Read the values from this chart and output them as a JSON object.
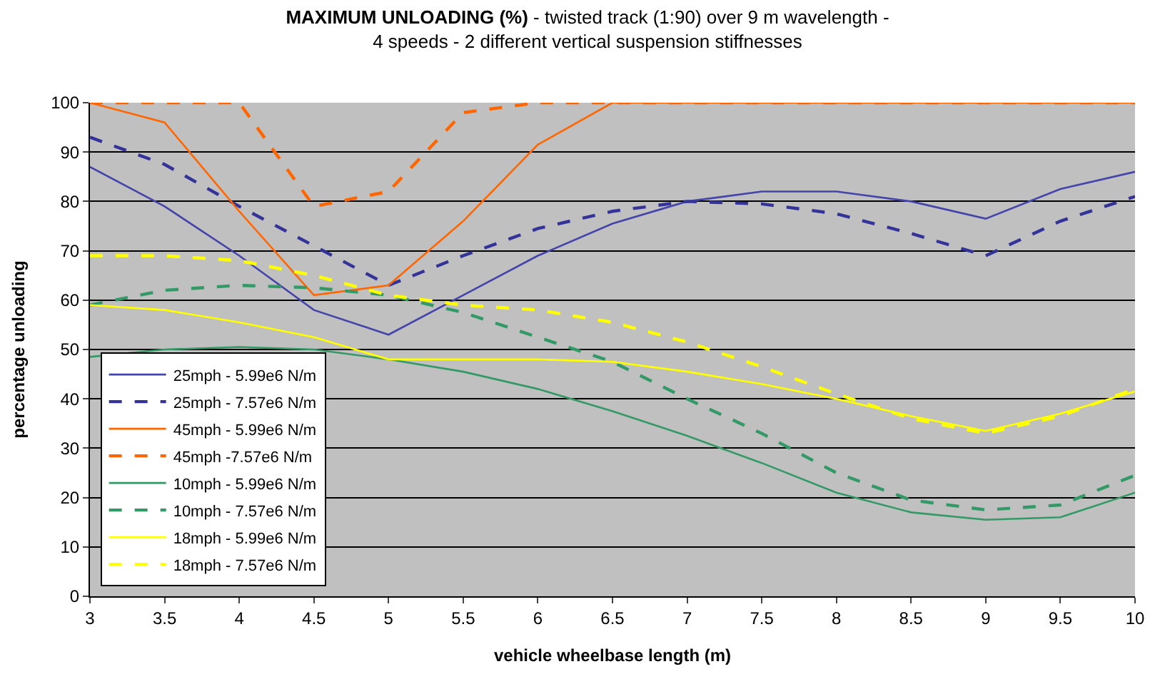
{
  "chart_data": {
    "type": "line",
    "title": "MAXIMUM UNLOADING (%)",
    "subtitle": "- twisted track (1:90) over 9 m wavelength - 4 speeds - 2 different vertical suspension stiffnesses",
    "xlabel": "vehicle wheelbase length (m)",
    "ylabel": "percentage unloading",
    "x": [
      3,
      3.5,
      4,
      4.5,
      5,
      5.5,
      6,
      6.5,
      7,
      7.5,
      8,
      8.5,
      9,
      9.5,
      10
    ],
    "series": [
      {
        "name": "25mph - 5.99e6 N/m",
        "color": "#4444aa",
        "line_style": "solid",
        "values": [
          87,
          79,
          69,
          58,
          53,
          61,
          69,
          75.5,
          80,
          82,
          82,
          80,
          76.5,
          82.5,
          86
        ]
      },
      {
        "name": "25mph - 7.57e6 N/m",
        "color": "#333399",
        "line_style": "dashed",
        "values": [
          93,
          87.5,
          79,
          71,
          63,
          69,
          74.5,
          78,
          80,
          79.5,
          77.5,
          73.5,
          69,
          76,
          81
        ]
      },
      {
        "name": "45mph - 5.99e6 N/m",
        "color": "#ff6600",
        "line_style": "solid",
        "values": [
          100,
          96,
          78,
          61,
          63,
          76,
          91.5,
          100,
          100,
          100,
          100,
          100,
          100,
          100,
          100
        ]
      },
      {
        "name": "45mph -7.57e6 N/m",
        "color": "#ff6600",
        "line_style": "dashed",
        "values": [
          100,
          100,
          100,
          79,
          82,
          98,
          100,
          100,
          100,
          100,
          100,
          100,
          100,
          100,
          100
        ]
      },
      {
        "name": "10mph - 5.99e6 N/m",
        "color": "#339966",
        "line_style": "solid",
        "values": [
          48.5,
          50,
          50.5,
          50,
          48,
          45.5,
          42,
          37.5,
          32.5,
          27,
          21,
          17,
          15.5,
          16,
          21
        ]
      },
      {
        "name": "10mph - 7.57e6 N/m",
        "color": "#339966",
        "line_style": "dashed",
        "values": [
          59,
          62,
          63,
          62.5,
          61,
          57.5,
          52.5,
          47.5,
          40,
          33,
          25,
          19.5,
          17.5,
          18.5,
          24.5
        ]
      },
      {
        "name": "18mph - 5.99e6 N/m",
        "color": "#ffff00",
        "line_style": "solid",
        "values": [
          59,
          58,
          55.5,
          52.5,
          48,
          48,
          48,
          47.5,
          45.5,
          43,
          40,
          36.5,
          33.5,
          37,
          41.5
        ]
      },
      {
        "name": "18mph - 7.57e6 N/m",
        "color": "#ffff00",
        "line_style": "dashed",
        "values": [
          69,
          69,
          68,
          65,
          61,
          59,
          58,
          55.5,
          51.5,
          46.5,
          41,
          36,
          33,
          36.5,
          42
        ]
      }
    ],
    "xlim": [
      3,
      10
    ],
    "xticks": [
      3,
      3.5,
      4,
      4.5,
      5,
      5.5,
      6,
      6.5,
      7,
      7.5,
      8,
      8.5,
      9,
      9.5,
      10
    ],
    "ylim": [
      0,
      100
    ],
    "yticks": [
      0,
      10,
      20,
      30,
      40,
      50,
      60,
      70,
      80,
      90,
      100
    ],
    "grid": "y",
    "legend": "bottom left",
    "marker": "none"
  }
}
